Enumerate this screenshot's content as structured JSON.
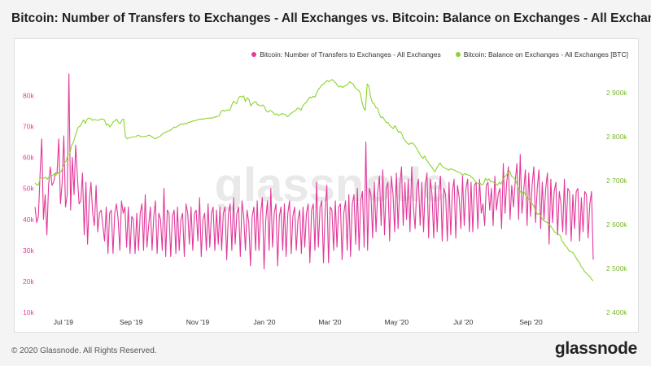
{
  "title": "Bitcoin: Number of Transfers to Exchanges - All Exchanges vs. Bitcoin: Balance on Exchanges - All Exchanges",
  "footer": {
    "copyright": "© 2020 Glassnode. All Rights Reserved.",
    "brand": "glassnode"
  },
  "watermark": "glassnode",
  "chart_data": {
    "type": "line",
    "title": "Bitcoin: Number of Transfers to Exchanges - All Exchanges vs. Bitcoin: Balance on Exchanges - All Exchanges",
    "x_ticks": [
      "Jul '19",
      "Sep '19",
      "Nov '19",
      "Jan '20",
      "Mar '20",
      "May '20",
      "Jul '20",
      "Sep '20"
    ],
    "y_left_ticks": [
      "10k",
      "20k",
      "30k",
      "40k",
      "50k",
      "60k",
      "70k",
      "80k"
    ],
    "y_right_ticks": [
      "2 400k",
      "2 500k",
      "2 600k",
      "2 700k",
      "2 800k",
      "2 900k"
    ],
    "ylim_left": [
      10000,
      88000
    ],
    "ylim_right": [
      2400000,
      2950000
    ],
    "x_start": "2019-06-05",
    "x_end": "2020-10-28",
    "legend_position": "top-right",
    "series": [
      {
        "name": "Bitcoin: Number of Transfers to Exchanges - All Exchanges",
        "axis": "left",
        "color": "#e2399a",
        "values": [
          44000,
          39000,
          41000,
          55000,
          66000,
          40000,
          48000,
          35000,
          51000,
          57000,
          51000,
          52000,
          55000,
          55000,
          66000,
          45000,
          52000,
          67000,
          44000,
          48000,
          87000,
          43000,
          60000,
          48000,
          64000,
          54000,
          45000,
          46000,
          55000,
          35000,
          52000,
          32000,
          46000,
          52000,
          42000,
          38000,
          51000,
          36000,
          42000,
          43000,
          38000,
          33000,
          44000,
          29000,
          42000,
          43000,
          29000,
          42000,
          45000,
          40000,
          30000,
          46000,
          42000,
          44000,
          31000,
          44000,
          29000,
          41000,
          40000,
          29000,
          42000,
          30000,
          42000,
          45000,
          30000,
          48000,
          31000,
          38000,
          44000,
          30000,
          41000,
          46000,
          29000,
          42000,
          40000,
          30000,
          50000,
          28000,
          43000,
          42000,
          28000,
          41000,
          43000,
          29000,
          44000,
          30000,
          40000,
          42000,
          28000,
          45000,
          42000,
          32000,
          44000,
          30000,
          42000,
          43000,
          33000,
          47000,
          28000,
          40000,
          42000,
          30000,
          45000,
          31000,
          42000,
          44000,
          30000,
          43000,
          32000,
          44000,
          30000,
          42000,
          44000,
          27000,
          42000,
          45000,
          30000,
          47000,
          32000,
          42000,
          44000,
          28000,
          46000,
          41000,
          30000,
          43000,
          39000,
          25000,
          41000,
          44000,
          30000,
          46000,
          30000,
          42000,
          47000,
          24000,
          40000,
          46000,
          30000,
          50000,
          31000,
          42000,
          45000,
          25000,
          41000,
          44000,
          30000,
          45000,
          28000,
          42000,
          46000,
          29000,
          41000,
          44000,
          30000,
          40000,
          43000,
          29000,
          44000,
          31000,
          42000,
          45000,
          26000,
          43000,
          45000,
          30000,
          52000,
          31000,
          44000,
          46000,
          26000,
          43000,
          51000,
          26000,
          44000,
          43000,
          30000,
          46000,
          31000,
          44000,
          45000,
          27000,
          42000,
          46000,
          30000,
          48000,
          28000,
          45000,
          48000,
          32000,
          50000,
          30000,
          46000,
          49000,
          31000,
          65000,
          30000,
          50000,
          48000,
          34000,
          52000,
          36000,
          49000,
          54000,
          38000,
          56000,
          35000,
          50000,
          52000,
          33000,
          54000,
          48000,
          36000,
          55000,
          37000,
          51000,
          57000,
          38000,
          52000,
          40000,
          53000,
          36000,
          57000,
          44000,
          37000,
          50000,
          53000,
          38000,
          52000,
          36000,
          51000,
          55000,
          34000,
          53000,
          48000,
          34000,
          52000,
          36000,
          49000,
          54000,
          33000,
          50000,
          48000,
          33000,
          52000,
          35000,
          49000,
          53000,
          34000,
          51000,
          47000,
          37000,
          54000,
          38000,
          50000,
          53000,
          36000,
          52000,
          36000,
          51000,
          52000,
          37000,
          53000,
          42000,
          45000,
          38000,
          51000,
          52000,
          43000,
          50000,
          38000,
          54000,
          43000,
          48000,
          50000,
          37000,
          58000,
          42000,
          52000,
          57000,
          40000,
          51000,
          44000,
          52000,
          58000,
          40000,
          61000,
          42000,
          49000,
          56000,
          38000,
          55000,
          41000,
          51000,
          57000,
          39000,
          50000,
          56000,
          37000,
          52000,
          40000,
          50000,
          55000,
          32000,
          53000,
          39000,
          49000,
          52000,
          35000,
          49000,
          45000,
          36000,
          53000,
          35000,
          50000,
          49000,
          33000,
          48000,
          37000,
          49000,
          50000,
          33000,
          47000,
          36000,
          49000,
          48000,
          34000,
          45000,
          49000,
          27000
        ]
      },
      {
        "name": "Bitcoin: Balance on Exchanges - All Exchanges [BTC]",
        "axis": "right",
        "color": "#8bd42c",
        "values": [
          2695000,
          2690000,
          2690000,
          2705000,
          2707000,
          2705000,
          2708000,
          2703000,
          2708000,
          2712000,
          2711000,
          2715000,
          2712000,
          2716000,
          2720000,
          2720000,
          2730000,
          2740000,
          2745000,
          2760000,
          2760000,
          2780000,
          2786000,
          2800000,
          2813000,
          2822000,
          2824000,
          2832000,
          2838000,
          2830000,
          2840000,
          2842000,
          2841000,
          2837000,
          2839000,
          2838000,
          2837000,
          2838000,
          2840000,
          2840000,
          2838000,
          2826000,
          2829000,
          2822000,
          2827000,
          2834000,
          2836000,
          2840000,
          2832000,
          2830000,
          2838000,
          2840000,
          2800000,
          2795000,
          2797000,
          2798000,
          2799000,
          2800000,
          2800000,
          2803000,
          2802000,
          2800000,
          2800000,
          2801000,
          2800000,
          2803000,
          2803000,
          2800000,
          2798000,
          2795000,
          2797000,
          2799000,
          2801000,
          2805000,
          2808000,
          2810000,
          2812000,
          2813000,
          2815000,
          2818000,
          2822000,
          2821000,
          2824000,
          2826000,
          2829000,
          2828000,
          2830000,
          2829000,
          2832000,
          2833000,
          2834000,
          2836000,
          2836000,
          2838000,
          2839000,
          2840000,
          2840000,
          2840000,
          2841000,
          2842000,
          2842000,
          2843000,
          2842000,
          2844000,
          2845000,
          2846000,
          2848000,
          2858000,
          2860000,
          2858000,
          2860000,
          2861000,
          2860000,
          2870000,
          2880000,
          2878000,
          2875000,
          2888000,
          2892000,
          2890000,
          2893000,
          2880000,
          2888000,
          2885000,
          2870000,
          2875000,
          2878000,
          2880000,
          2872000,
          2872000,
          2870000,
          2872000,
          2868000,
          2858000,
          2856000,
          2860000,
          2858000,
          2854000,
          2850000,
          2852000,
          2848000,
          2850000,
          2853000,
          2851000,
          2850000,
          2845000,
          2848000,
          2852000,
          2855000,
          2858000,
          2860000,
          2865000,
          2864000,
          2860000,
          2870000,
          2875000,
          2878000,
          2885000,
          2890000,
          2888000,
          2892000,
          2890000,
          2900000,
          2908000,
          2912000,
          2918000,
          2920000,
          2924000,
          2928000,
          2925000,
          2928000,
          2930000,
          2926000,
          2922000,
          2916000,
          2913000,
          2915000,
          2912000,
          2915000,
          2917000,
          2920000,
          2925000,
          2922000,
          2920000,
          2912000,
          2908000,
          2906000,
          2900000,
          2880000,
          2865000,
          2860000,
          2920000,
          2915000,
          2890000,
          2877000,
          2876000,
          2866000,
          2865000,
          2852000,
          2843000,
          2845000,
          2838000,
          2832000,
          2832000,
          2825000,
          2822000,
          2818000,
          2825000,
          2818000,
          2810000,
          2812000,
          2806000,
          2795000,
          2790000,
          2786000,
          2782000,
          2785000,
          2786000,
          2782000,
          2776000,
          2770000,
          2762000,
          2756000,
          2750000,
          2756000,
          2748000,
          2742000,
          2736000,
          2732000,
          2725000,
          2720000,
          2728000,
          2735000,
          2740000,
          2733000,
          2730000,
          2728000,
          2726000,
          2724000,
          2727000,
          2725000,
          2724000,
          2722000,
          2720000,
          2718000,
          2716000,
          2712000,
          2716000,
          2714000,
          2713000,
          2712000,
          2708000,
          2705000,
          2699000,
          2695000,
          2693000,
          2694000,
          2690000,
          2693000,
          2705000,
          2700000,
          2704000,
          2697000,
          2698000,
          2695000,
          2693000,
          2690000,
          2696000,
          2692000,
          2702000,
          2708000,
          2712000,
          2718000,
          2722000,
          2710000,
          2707000,
          2703000,
          2695000,
          2680000,
          2675000,
          2671000,
          2676000,
          2668000,
          2660000,
          2658000,
          2650000,
          2647000,
          2640000,
          2630000,
          2623000,
          2625000,
          2618000,
          2611000,
          2607000,
          2606000,
          2603000,
          2598000,
          2594000,
          2588000,
          2582000,
          2580000,
          2578000,
          2575000,
          2562000,
          2558000,
          2551000,
          2548000,
          2540000,
          2538000,
          2537000,
          2532000,
          2525000,
          2518000,
          2514000,
          2505000,
          2500000,
          2493000,
          2489000,
          2485000,
          2482000,
          2475000,
          2472000
        ]
      }
    ]
  }
}
